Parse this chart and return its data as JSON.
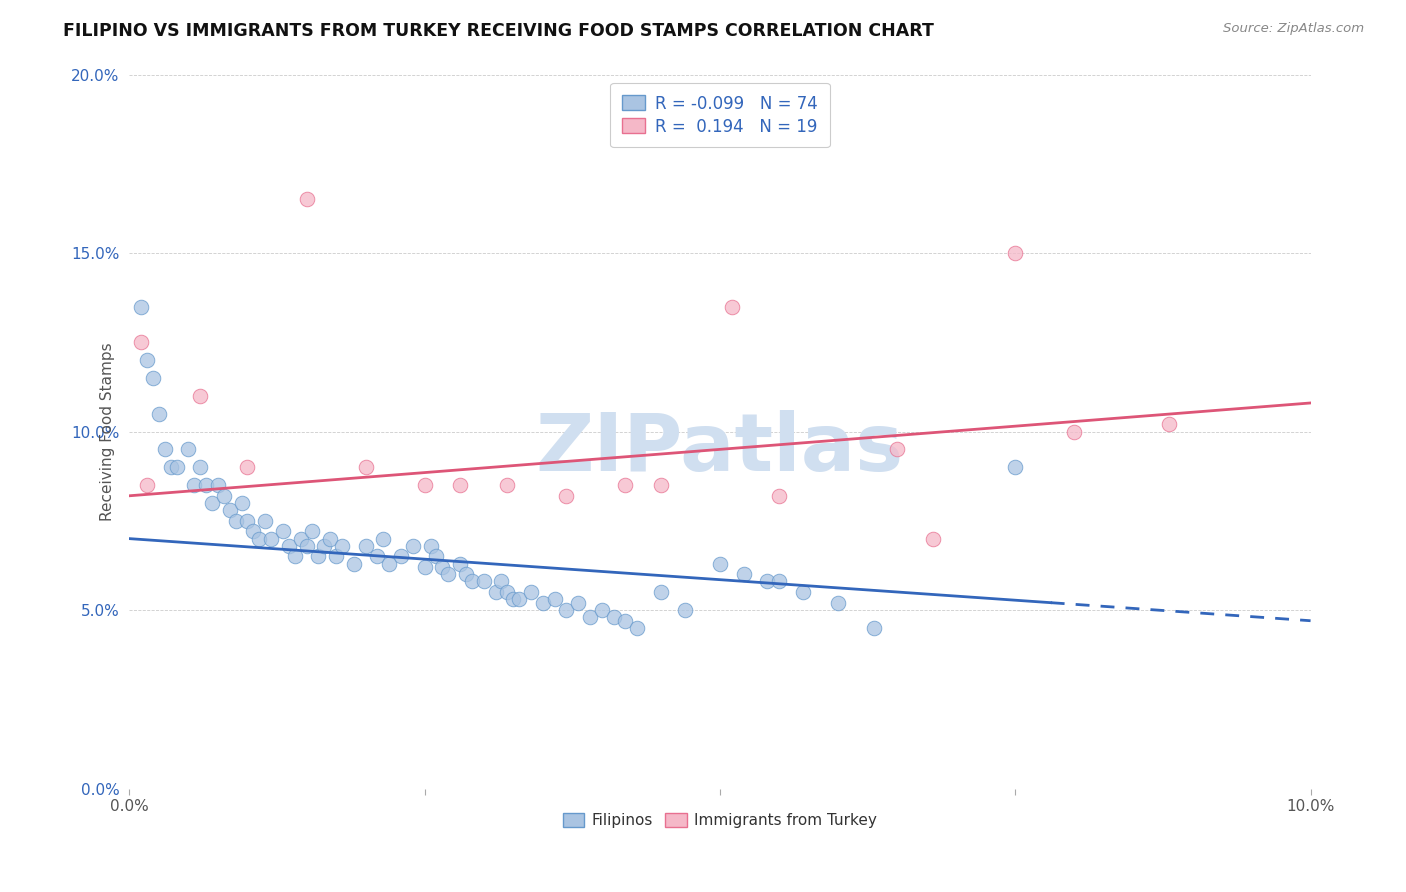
{
  "title": "FILIPINO VS IMMIGRANTS FROM TURKEY RECEIVING FOOD STAMPS CORRELATION CHART",
  "source": "Source: ZipAtlas.com",
  "ylabel": "Receiving Food Stamps",
  "xlim": [
    0.0,
    10.0
  ],
  "ylim": [
    0.0,
    20.0
  ],
  "yticks": [
    0.0,
    5.0,
    10.0,
    15.0,
    20.0
  ],
  "xticks": [
    0.0,
    2.5,
    5.0,
    7.5,
    10.0
  ],
  "blue_R": -0.099,
  "blue_N": 74,
  "pink_R": 0.194,
  "pink_N": 19,
  "blue_color": "#aac4e2",
  "pink_color": "#f5b8c8",
  "blue_edge_color": "#6699cc",
  "pink_edge_color": "#e87090",
  "blue_line_color": "#3366bb",
  "pink_line_color": "#dd5577",
  "watermark": "ZIPatlas",
  "watermark_color": "#d0dff0",
  "legend_label_blue": "Filipinos",
  "legend_label_pink": "Immigrants from Turkey",
  "blue_trend_x0": 0.0,
  "blue_trend_y0": 7.0,
  "blue_trend_x1": 10.0,
  "blue_trend_y1": 4.7,
  "blue_dash_start": 7.8,
  "pink_trend_x0": 0.0,
  "pink_trend_y0": 8.2,
  "pink_trend_x1": 10.0,
  "pink_trend_y1": 10.8,
  "blue_x": [
    0.1,
    0.15,
    0.2,
    0.25,
    0.3,
    0.35,
    0.4,
    0.5,
    0.55,
    0.6,
    0.65,
    0.7,
    0.75,
    0.8,
    0.85,
    0.9,
    0.95,
    1.0,
    1.05,
    1.1,
    1.15,
    1.2,
    1.3,
    1.35,
    1.4,
    1.45,
    1.5,
    1.55,
    1.6,
    1.65,
    1.7,
    1.75,
    1.8,
    1.9,
    2.0,
    2.1,
    2.15,
    2.2,
    2.3,
    2.4,
    2.5,
    2.55,
    2.6,
    2.65,
    2.7,
    2.8,
    2.85,
    2.9,
    3.0,
    3.1,
    3.15,
    3.2,
    3.25,
    3.3,
    3.4,
    3.5,
    3.6,
    3.7,
    3.8,
    3.9,
    4.0,
    4.1,
    4.2,
    4.3,
    4.5,
    4.7,
    5.0,
    5.2,
    5.4,
    5.5,
    5.7,
    6.0,
    6.3,
    7.5
  ],
  "blue_y": [
    13.5,
    12.0,
    11.5,
    10.5,
    9.5,
    9.0,
    9.0,
    9.5,
    8.5,
    9.0,
    8.5,
    8.0,
    8.5,
    8.2,
    7.8,
    7.5,
    8.0,
    7.5,
    7.2,
    7.0,
    7.5,
    7.0,
    7.2,
    6.8,
    6.5,
    7.0,
    6.8,
    7.2,
    6.5,
    6.8,
    7.0,
    6.5,
    6.8,
    6.3,
    6.8,
    6.5,
    7.0,
    6.3,
    6.5,
    6.8,
    6.2,
    6.8,
    6.5,
    6.2,
    6.0,
    6.3,
    6.0,
    5.8,
    5.8,
    5.5,
    5.8,
    5.5,
    5.3,
    5.3,
    5.5,
    5.2,
    5.3,
    5.0,
    5.2,
    4.8,
    5.0,
    4.8,
    4.7,
    4.5,
    5.5,
    5.0,
    6.3,
    6.0,
    5.8,
    5.8,
    5.5,
    5.2,
    4.5,
    9.0
  ],
  "pink_x": [
    0.1,
    0.15,
    0.6,
    1.0,
    1.5,
    2.0,
    2.5,
    2.8,
    3.2,
    3.7,
    4.2,
    4.5,
    5.1,
    5.5,
    6.5,
    7.5,
    8.0,
    8.8,
    6.8
  ],
  "pink_y": [
    12.5,
    8.5,
    11.0,
    9.0,
    16.5,
    9.0,
    8.5,
    8.5,
    8.5,
    8.2,
    8.5,
    8.5,
    13.5,
    8.2,
    9.5,
    15.0,
    10.0,
    10.2,
    7.0
  ]
}
